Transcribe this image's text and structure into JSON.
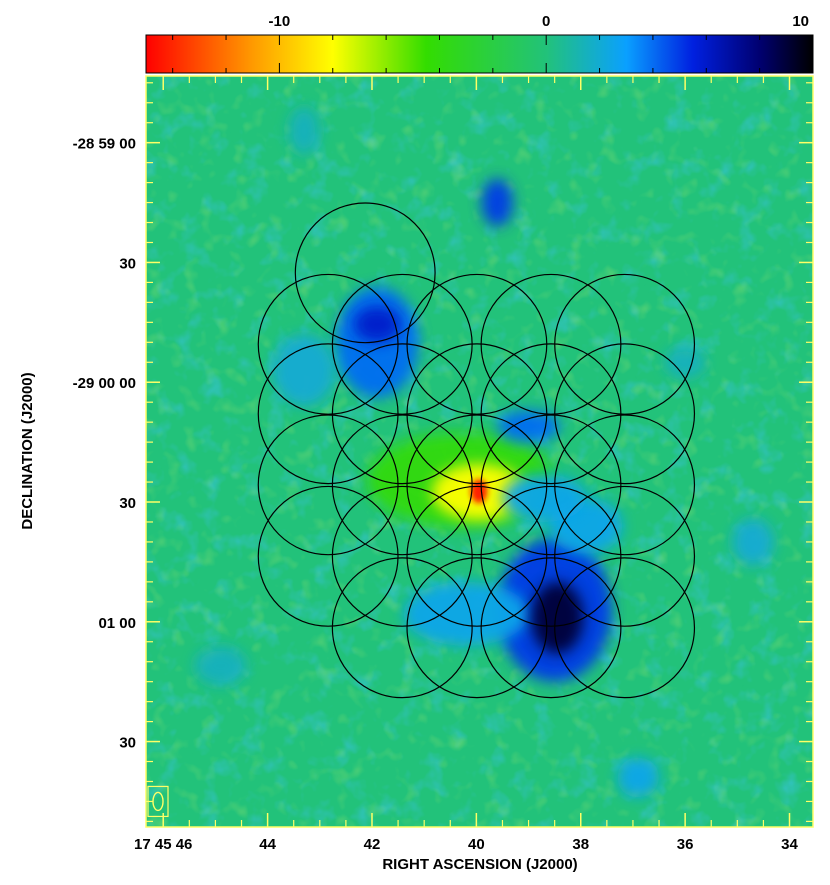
{
  "colorbar": {
    "tick_labels": [
      "-10",
      "0",
      "10"
    ],
    "tick_values": [
      -10,
      0,
      10
    ],
    "range": [
      -15,
      10
    ],
    "stops": [
      {
        "v": -15,
        "color": "#ff0000"
      },
      {
        "v": -11,
        "color": "#ff9a00"
      },
      {
        "v": -8,
        "color": "#ffff00"
      },
      {
        "v": -4.5,
        "color": "#33dd00"
      },
      {
        "v": 0,
        "color": "#22c27a"
      },
      {
        "v": 3,
        "color": "#0aa0ff"
      },
      {
        "v": 5.5,
        "color": "#0020e0"
      },
      {
        "v": 8,
        "color": "#000070"
      },
      {
        "v": 10,
        "color": "#000000"
      }
    ]
  },
  "axes": {
    "xlabel": "RIGHT ASCENSION (J2000)",
    "ylabel": "DECLINATION (J2000)",
    "x_tick_labels": [
      "17 45 46",
      "44",
      "42",
      "40",
      "38",
      "36",
      "34"
    ],
    "x_tick_values_sec": [
      46,
      44,
      42,
      40,
      38,
      36,
      34
    ],
    "y_tick_labels": [
      "-28 59 00",
      "30",
      "-29 00 00",
      "30",
      "01 00",
      "30"
    ],
    "y_tick_values_arcsec": [
      0,
      30,
      60,
      90,
      120,
      150
    ],
    "xlim_sec": [
      46.33,
      33.55
    ],
    "ylim_arcsec": [
      -16.7,
      171.4
    ]
  },
  "map": {
    "background_color": "#22c27a",
    "features": [
      {
        "x": 39.95,
        "y": 87.3,
        "rx": 0.16,
        "ry": 3.0,
        "value": -14.5
      },
      {
        "x": 39.95,
        "y": 87.5,
        "rx": 0.9,
        "ry": 7.0,
        "value": -8
      },
      {
        "x": 40.3,
        "y": 84.5,
        "rx": 1.8,
        "ry": 12,
        "value": -4
      },
      {
        "x": 41.9,
        "y": 45.5,
        "rx": 0.45,
        "ry": 4.5,
        "value": 6
      },
      {
        "x": 41.9,
        "y": 50,
        "rx": 0.8,
        "ry": 14,
        "value": 4
      },
      {
        "x": 38.45,
        "y": 119,
        "rx": 0.5,
        "ry": 9,
        "value": 9
      },
      {
        "x": 38.5,
        "y": 117,
        "rx": 1.1,
        "ry": 18,
        "value": 5
      },
      {
        "x": 39.6,
        "y": 15,
        "rx": 0.3,
        "ry": 6,
        "value": 5
      },
      {
        "x": 39.0,
        "y": 71,
        "rx": 0.6,
        "ry": 4,
        "value": 4
      },
      {
        "x": 40.2,
        "y": 118,
        "rx": 1.2,
        "ry": 8,
        "value": 2.5
      },
      {
        "x": 38.7,
        "y": 89,
        "rx": 0.8,
        "ry": 6,
        "value": 2.5
      },
      {
        "x": 37.9,
        "y": 96,
        "rx": 0.7,
        "ry": 7,
        "value": 2.5
      },
      {
        "x": 43.3,
        "y": 57,
        "rx": 0.6,
        "ry": 9,
        "value": 2
      },
      {
        "x": 36.0,
        "y": 55,
        "rx": 0.4,
        "ry": 4,
        "value": 1.5
      },
      {
        "x": 34.7,
        "y": 100,
        "rx": 0.4,
        "ry": 6,
        "value": 2
      },
      {
        "x": 36.9,
        "y": 159,
        "rx": 0.4,
        "ry": 5,
        "value": 2.5
      },
      {
        "x": 44.9,
        "y": 131,
        "rx": 0.5,
        "ry": 5,
        "value": 1.5
      },
      {
        "x": 43.3,
        "y": -3,
        "rx": 0.3,
        "ry": 6,
        "value": 1.5
      }
    ]
  },
  "fields": {
    "radius_arcsec": 17.5,
    "circles": [
      {
        "x": 42.13,
        "y": 32.6
      },
      {
        "x": 42.84,
        "y": 50.5
      },
      {
        "x": 41.42,
        "y": 50.5
      },
      {
        "x": 39.99,
        "y": 50.5
      },
      {
        "x": 38.57,
        "y": 50.5
      },
      {
        "x": 37.16,
        "y": 50.5
      },
      {
        "x": 42.84,
        "y": 67.9
      },
      {
        "x": 41.42,
        "y": 67.9
      },
      {
        "x": 39.99,
        "y": 67.9
      },
      {
        "x": 38.57,
        "y": 67.9
      },
      {
        "x": 37.16,
        "y": 67.9
      },
      {
        "x": 42.84,
        "y": 85.7
      },
      {
        "x": 41.42,
        "y": 85.7
      },
      {
        "x": 39.99,
        "y": 85.7
      },
      {
        "x": 38.57,
        "y": 85.7
      },
      {
        "x": 37.16,
        "y": 85.7
      },
      {
        "x": 42.84,
        "y": 103.6
      },
      {
        "x": 41.42,
        "y": 103.6
      },
      {
        "x": 39.99,
        "y": 103.6
      },
      {
        "x": 38.57,
        "y": 103.6
      },
      {
        "x": 37.16,
        "y": 103.6
      },
      {
        "x": 41.42,
        "y": 121.5
      },
      {
        "x": 39.99,
        "y": 121.5
      },
      {
        "x": 38.57,
        "y": 121.5
      },
      {
        "x": 37.16,
        "y": 121.5
      }
    ]
  },
  "beam": {
    "x": 46.1,
    "y": 165,
    "box_color": "#ffff66"
  },
  "colors": {
    "frame_tick": "#ffff66",
    "circle_stroke": "#000000"
  }
}
